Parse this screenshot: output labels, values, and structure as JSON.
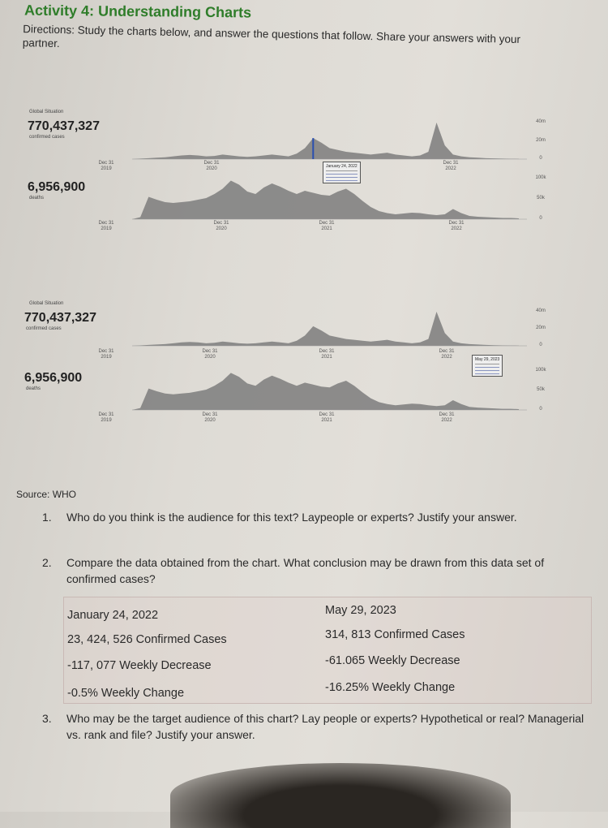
{
  "header": {
    "title": "Activity 4: Understanding Charts",
    "directions": "Directions: Study the charts below, and answer the questions that follow. Share your answers with your partner."
  },
  "charts": [
    {
      "section_label": "Global Situation",
      "cases_total": "770,437,327",
      "cases_label": "confirmed cases",
      "deaths_total": "6,956,900",
      "deaths_label": "deaths",
      "cases_ticks": [
        "40m",
        "20m",
        "0"
      ],
      "deaths_ticks": [
        "100k",
        "50k",
        "0"
      ],
      "cases_dates": [
        "Dec 31 2019",
        "Dec 31 2020",
        "Dec 31 2022"
      ],
      "deaths_dates": [
        "Dec 31 2019",
        "Dec 31 2020",
        "Dec 31 2021",
        "Dec 31 2022"
      ],
      "tooltip": {
        "date": "January 24, 2022",
        "highlight": "cases"
      }
    },
    {
      "section_label": "Global Situation",
      "cases_total": "770,437,327",
      "cases_label": "confirmed cases",
      "deaths_total": "6,956,900",
      "deaths_label": "deaths",
      "cases_ticks": [
        "40m",
        "20m",
        "0"
      ],
      "deaths_ticks": [
        "100k",
        "50k",
        "0"
      ],
      "cases_dates": [
        "Dec 31 2019",
        "Dec 31 2020",
        "Dec 31 2021",
        "Dec 31 2022"
      ],
      "deaths_dates": [
        "Dec 31 2019",
        "Dec 31 2020",
        "Dec 31 2021",
        "Dec 31 2022"
      ],
      "tooltip": {
        "date": "May 29, 2023",
        "highlight": "cases"
      }
    }
  ],
  "chart_data": [
    {
      "type": "area",
      "title": "",
      "xlabel": "",
      "ylabel": "",
      "ylim": [
        0,
        40
      ],
      "series": [
        {
          "name": "confirmed cases",
          "values": [
            0,
            0.5,
            1,
            1.5,
            2,
            3,
            4,
            4.5,
            4,
            3,
            3.5,
            5,
            4,
            3,
            2.5,
            3,
            4,
            5,
            4,
            3,
            6,
            12,
            23,
            18,
            12,
            10,
            8,
            7,
            6,
            5,
            6,
            7,
            5,
            4,
            3,
            4,
            8,
            40,
            15,
            5,
            3,
            2,
            1.5,
            1,
            0.8,
            0.5,
            0.4,
            0.3
          ]
        }
      ]
    },
    {
      "type": "area",
      "title": "",
      "xlabel": "",
      "ylabel": "",
      "ylim": [
        0,
        100
      ],
      "series": [
        {
          "name": "deaths",
          "values": [
            0,
            5,
            55,
            48,
            42,
            40,
            42,
            44,
            48,
            52,
            62,
            75,
            95,
            85,
            68,
            62,
            78,
            88,
            80,
            70,
            62,
            70,
            65,
            60,
            58,
            68,
            75,
            62,
            45,
            30,
            20,
            15,
            12,
            14,
            16,
            15,
            12,
            10,
            12,
            25,
            15,
            8,
            6,
            5,
            4,
            3,
            3,
            2
          ]
        }
      ]
    }
  ],
  "source": "Source: WHO",
  "questions": [
    {
      "num": "1.",
      "text": "Who do you think is the audience for this text? Laypeople or experts? Justify your answer."
    },
    {
      "num": "2.",
      "text": "Compare the data obtained from the chart. What conclusion may be drawn from this data set of confirmed cases?"
    },
    {
      "num": "3.",
      "text": "Who may be the target audience of this chart? Lay people or experts? Hypothetical or real? Managerial vs. rank and file? Justify your answer."
    }
  ],
  "comparison": {
    "left": [
      "January 24, 2022",
      "23, 424, 526 Confirmed Cases",
      "-117, 077 Weekly Decrease",
      "-0.5% Weekly Change"
    ],
    "right": [
      "May 29, 2023",
      "314, 813 Confirmed Cases",
      "-61.065 Weekly Decrease",
      "-16.25% Weekly Change"
    ]
  },
  "colors": {
    "title": "#2f7d2a",
    "area": "#7d7d7d",
    "highlight": "#2a4fb0"
  }
}
